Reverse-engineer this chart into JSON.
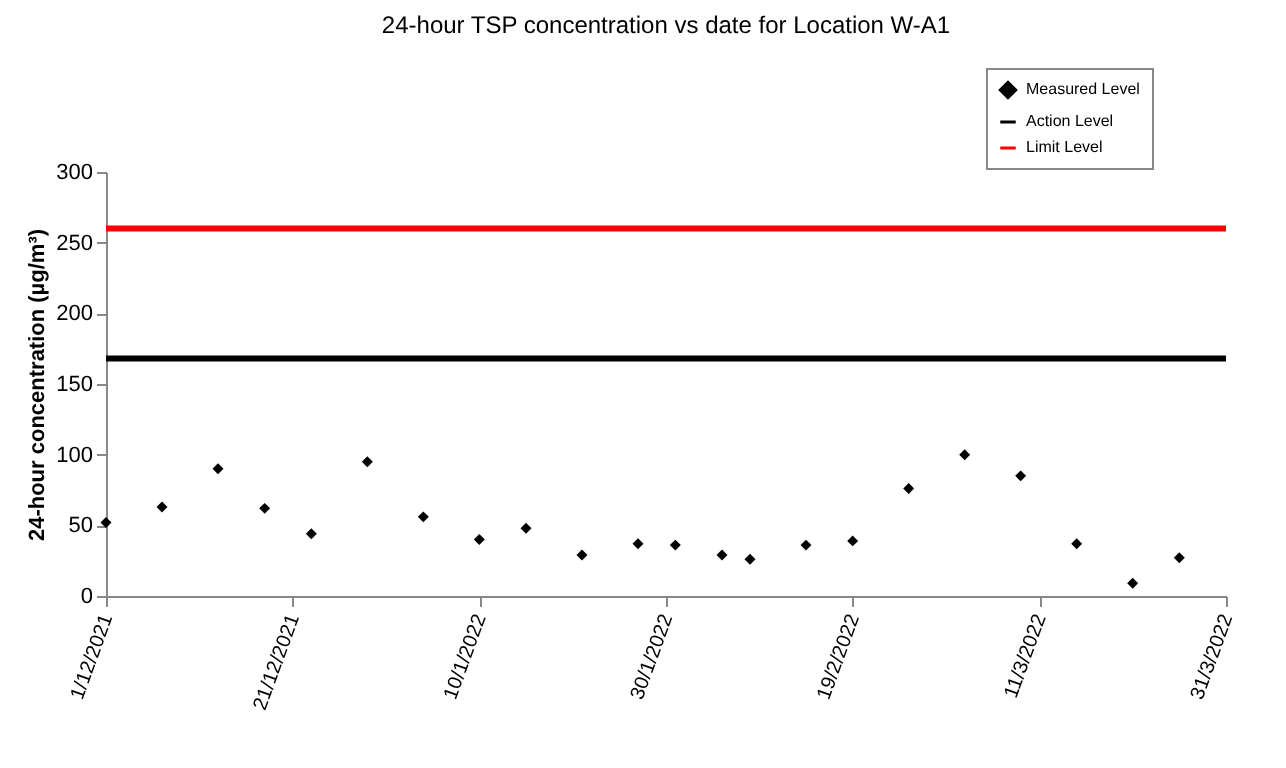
{
  "chart_data": {
    "type": "scatter",
    "title": "24-hour TSP concentration vs date for Location W-A1",
    "ylabel": "24-hour concentration (µg/m³)",
    "x": [
      "2021-12-01",
      "2021-12-07",
      "2021-12-13",
      "2021-12-18",
      "2021-12-23",
      "2021-12-29",
      "2022-01-04",
      "2022-01-10",
      "2022-01-15",
      "2022-01-21",
      "2022-01-27",
      "2022-01-31",
      "2022-02-05",
      "2022-02-08",
      "2022-02-14",
      "2022-02-19",
      "2022-02-25",
      "2022-03-03",
      "2022-03-09",
      "2022-03-15",
      "2022-03-21",
      "2022-03-26"
    ],
    "series": [
      {
        "name": "Measured Level",
        "color": "#000000",
        "values": [
          52,
          63,
          90,
          62,
          44,
          95,
          56,
          40,
          48,
          29,
          37,
          36,
          29,
          26,
          36,
          39,
          76,
          100,
          85,
          37,
          9,
          27
        ]
      }
    ],
    "ref_lines": [
      {
        "axis": "y",
        "value": 168,
        "label": "Action Level",
        "color": "#000000"
      },
      {
        "axis": "y",
        "value": 260,
        "label": "Limit Level",
        "color": "#ff0000"
      }
    ],
    "xlim": [
      "2021-12-01",
      "2022-03-31"
    ],
    "xticks": [
      {
        "value": "2021-12-01",
        "label": "1/12/2021"
      },
      {
        "value": "2021-12-21",
        "label": "21/12/2021"
      },
      {
        "value": "2022-01-10",
        "label": "10/1/2022"
      },
      {
        "value": "2022-01-30",
        "label": "30/1/2022"
      },
      {
        "value": "2022-02-19",
        "label": "19/2/2022"
      },
      {
        "value": "2022-03-11",
        "label": "11/3/2022"
      },
      {
        "value": "2022-03-31",
        "label": "31/3/2022"
      }
    ],
    "ylim": [
      0,
      300
    ],
    "yticks": [
      0,
      50,
      100,
      150,
      200,
      250,
      300
    ],
    "marker": "diamond",
    "legend": "top right"
  }
}
